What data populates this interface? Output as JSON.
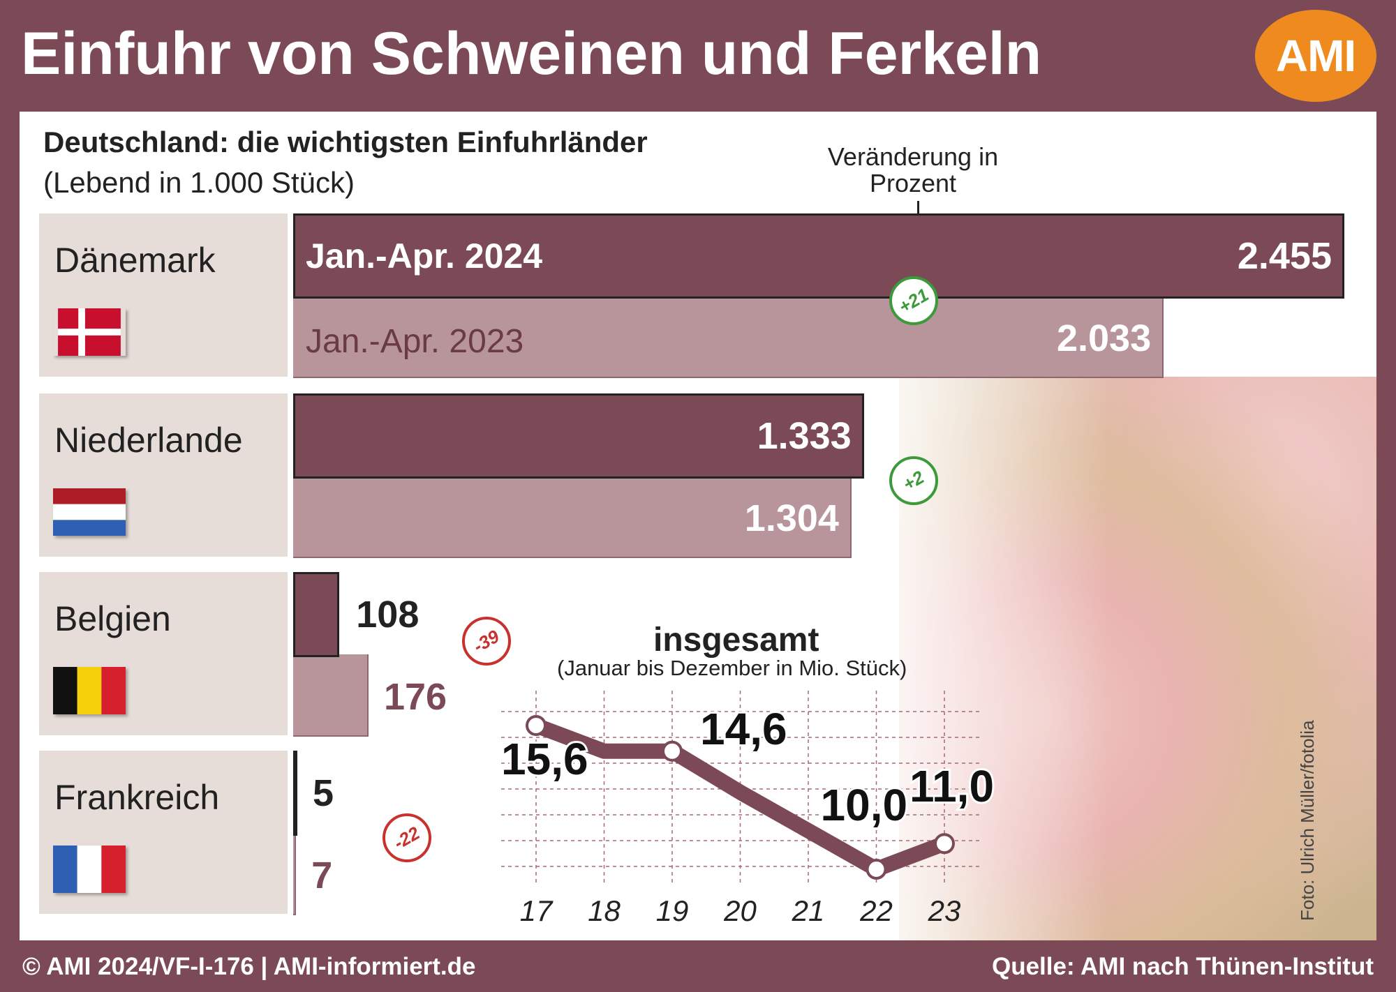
{
  "header": {
    "title": "Einfuhr von Schweinen und Ferkeln",
    "logo": "AMI"
  },
  "footer": {
    "left": "© AMI 2024/VF-I-176 | AMI-informiert.de",
    "right": "Quelle: AMI nach Thünen-Institut"
  },
  "photo_credit": "Foto: Ulrich Müller/fotolia",
  "colors": {
    "frame": "#7c4a56",
    "bar_2024": "#7c4a56",
    "bar_2023": "#b38d92",
    "badge_up": "#3d9a3a",
    "badge_down": "#c8312e",
    "logo": "#ef8a1e"
  },
  "chart_data": [
    {
      "type": "bar",
      "title": "Deutschland: die wichtigsten Einfuhrländer",
      "subtitle": "(Lebend in 1.000 Stück)",
      "annotation": "Veränderung in Prozent",
      "series_labels": [
        "Jan.-Apr. 2024",
        "Jan.-Apr. 2023"
      ],
      "categories": [
        "Dänemark",
        "Niederlande",
        "Belgien",
        "Frankreich"
      ],
      "series": [
        {
          "name": "Jan.-Apr. 2024",
          "values": [
            2455,
            1333,
            108,
            5
          ],
          "labels": [
            "2.455",
            "1.333",
            "108",
            "5"
          ]
        },
        {
          "name": "Jan.-Apr. 2023",
          "values": [
            2033,
            1304,
            176,
            7
          ],
          "labels": [
            "2.033",
            "1.304",
            "176",
            "7"
          ]
        }
      ],
      "change_percent": [
        21,
        2,
        -39,
        -22
      ],
      "change_labels": [
        "+21",
        "+2",
        "-39",
        "-22"
      ]
    },
    {
      "type": "line",
      "title": "insgesamt",
      "subtitle": "(Januar bis Dezember in Mio. Stück)",
      "x": [
        "17",
        "18",
        "19",
        "20",
        "21",
        "22",
        "23"
      ],
      "labeled_points": [
        {
          "x": "17",
          "value": 15.6,
          "label": "15,6"
        },
        {
          "x": "19",
          "value": 14.6,
          "label": "14,6"
        },
        {
          "x": "22",
          "value": 10.0,
          "label": "10,0"
        },
        {
          "x": "23",
          "value": 11.0,
          "label": "11,0"
        }
      ],
      "series": [
        {
          "values": [
            15.6,
            14.6,
            14.6,
            13.0,
            11.5,
            10.0,
            11.0
          ]
        }
      ],
      "grid": true
    }
  ]
}
